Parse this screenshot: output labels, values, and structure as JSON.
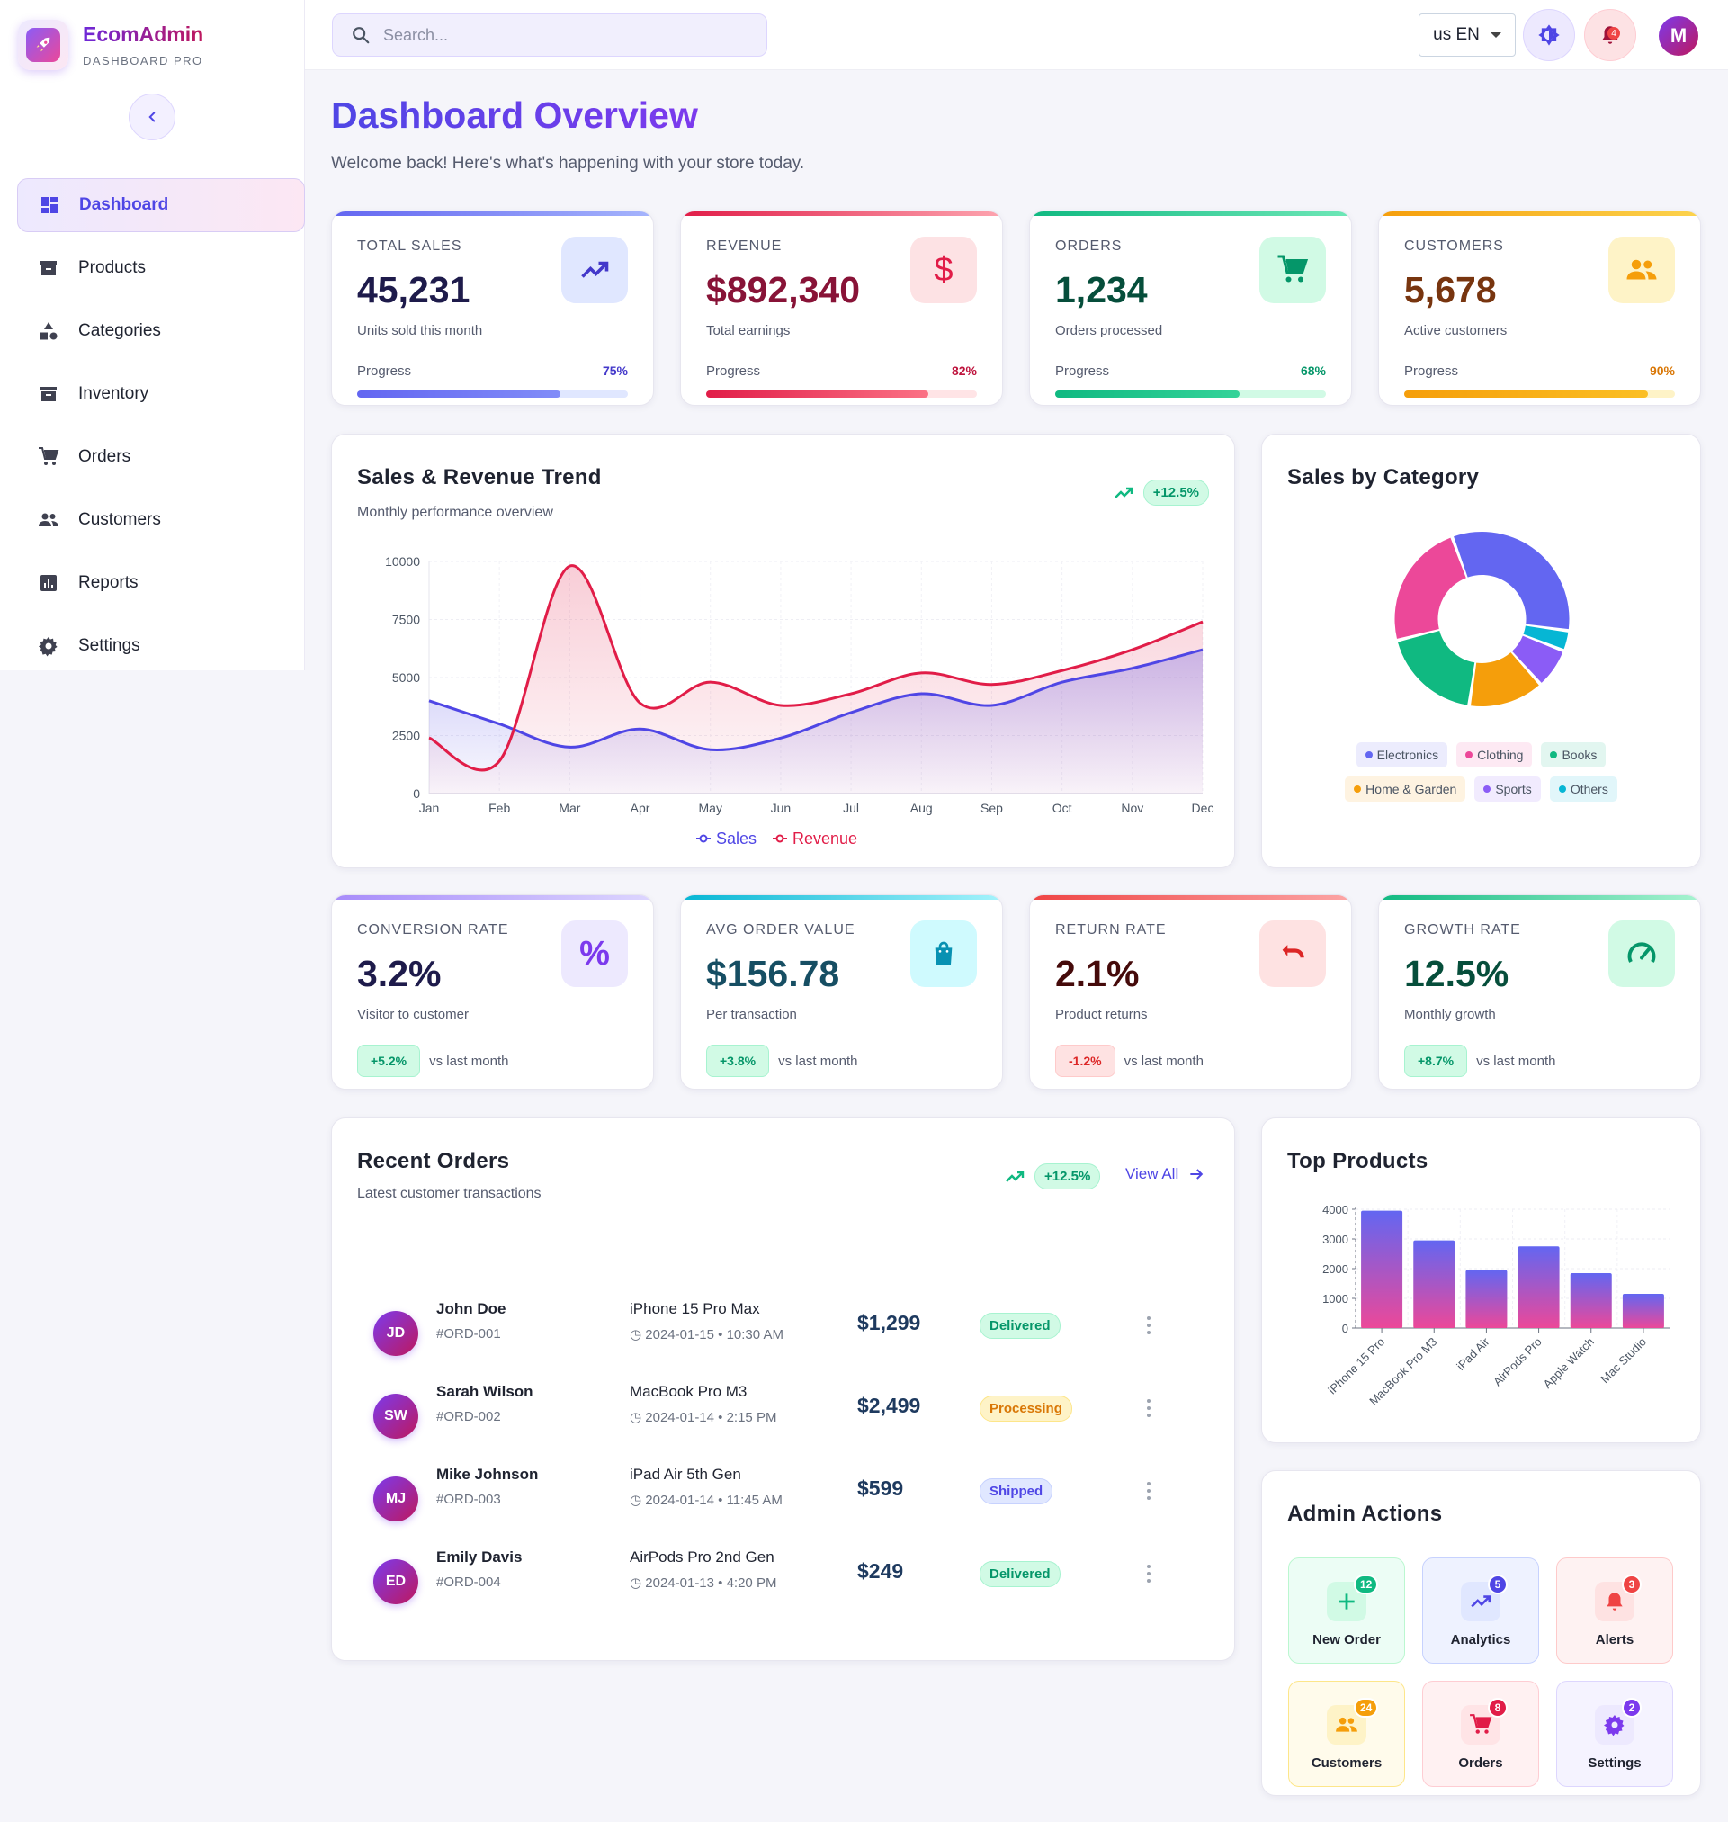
{
  "brand": {
    "name": "EcomAdmin",
    "subtitle": "DASHBOARD PRO"
  },
  "sidebar": {
    "items": [
      {
        "label": "Dashboard",
        "icon": "dashboard-icon",
        "active": true
      },
      {
        "label": "Products",
        "icon": "archive-icon"
      },
      {
        "label": "Categories",
        "icon": "category-icon"
      },
      {
        "label": "Inventory",
        "icon": "inventory-icon"
      },
      {
        "label": "Orders",
        "icon": "cart-icon"
      },
      {
        "label": "Customers",
        "icon": "people-icon"
      },
      {
        "label": "Reports",
        "icon": "report-icon"
      },
      {
        "label": "Settings",
        "icon": "gear-icon"
      }
    ]
  },
  "topbar": {
    "search_placeholder": "Search...",
    "language": "us EN",
    "notifications": "4",
    "avatar_initial": "M"
  },
  "header": {
    "title": "Dashboard Overview",
    "subtitle": "Welcome back! Here's what's happening with your store today."
  },
  "stats": [
    {
      "label": "TOTAL SALES",
      "value": "45,231",
      "desc": "Units sold this month",
      "progress_label": "Progress",
      "progress": "75%",
      "color": "#6366f1"
    },
    {
      "label": "REVENUE",
      "value": "$892,340",
      "desc": "Total earnings",
      "progress_label": "Progress",
      "progress": "82%",
      "color": "#e11d48"
    },
    {
      "label": "ORDERS",
      "value": "1,234",
      "desc": "Orders processed",
      "progress_label": "Progress",
      "progress": "68%",
      "color": "#10b981"
    },
    {
      "label": "CUSTOMERS",
      "value": "5,678",
      "desc": "Active customers",
      "progress_label": "Progress",
      "progress": "90%",
      "color": "#f59e0b"
    }
  ],
  "kpis": [
    {
      "label": "CONVERSION RATE",
      "value": "3.2%",
      "desc": "Visitor to customer",
      "delta": "+5.2%",
      "vs": "vs last month"
    },
    {
      "label": "AVG ORDER VALUE",
      "value": "$156.78",
      "desc": "Per transaction",
      "delta": "+3.8%",
      "vs": "vs last month"
    },
    {
      "label": "RETURN RATE",
      "value": "2.1%",
      "desc": "Product returns",
      "delta": "-1.2%",
      "vs": "vs last month"
    },
    {
      "label": "GROWTH RATE",
      "value": "12.5%",
      "desc": "Monthly growth",
      "delta": "+8.7%",
      "vs": "vs last month"
    }
  ],
  "trend": {
    "title": "Sales & Revenue Trend",
    "subtitle": "Monthly performance overview",
    "badge": "+12.5%"
  },
  "category": {
    "title": "Sales by Category"
  },
  "orders_section": {
    "title": "Recent Orders",
    "subtitle": "Latest customer transactions",
    "badge": "+12.5%",
    "view_all": "View All",
    "rows": [
      {
        "initials": "JD",
        "name": "John Doe",
        "id": "#ORD-001",
        "product": "iPhone 15 Pro Max",
        "date": "2024-01-15 • 10:30 AM",
        "amount": "$1,299",
        "status": "Delivered"
      },
      {
        "initials": "SW",
        "name": "Sarah Wilson",
        "id": "#ORD-002",
        "product": "MacBook Pro M3",
        "date": "2024-01-14 • 2:15 PM",
        "amount": "$2,499",
        "status": "Processing"
      },
      {
        "initials": "MJ",
        "name": "Mike Johnson",
        "id": "#ORD-003",
        "product": "iPad Air 5th Gen",
        "date": "2024-01-14 • 11:45 AM",
        "amount": "$599",
        "status": "Shipped"
      },
      {
        "initials": "ED",
        "name": "Emily Davis",
        "id": "#ORD-004",
        "product": "AirPods Pro 2nd Gen",
        "date": "2024-01-13 • 4:20 PM",
        "amount": "$249",
        "status": "Delivered"
      }
    ]
  },
  "top_products": {
    "title": "Top Products"
  },
  "admin_actions": {
    "title": "Admin Actions",
    "items": [
      {
        "label": "New Order",
        "badge": "12",
        "icon": "plus-icon"
      },
      {
        "label": "Analytics",
        "badge": "5",
        "icon": "trending-icon"
      },
      {
        "label": "Alerts",
        "badge": "3",
        "icon": "bell-icon"
      },
      {
        "label": "Customers",
        "badge": "24",
        "icon": "people-icon"
      },
      {
        "label": "Orders",
        "badge": "8",
        "icon": "cart-icon"
      },
      {
        "label": "Settings",
        "badge": "2",
        "icon": "gear-icon"
      }
    ]
  },
  "chart_data": [
    {
      "type": "area",
      "categories": [
        "Jan",
        "Feb",
        "Mar",
        "Apr",
        "May",
        "Jun",
        "Jul",
        "Aug",
        "Sep",
        "Oct",
        "Nov",
        "Dec"
      ],
      "ylim": [
        0,
        10000
      ],
      "yticks": [
        0,
        2500,
        5000,
        7500,
        10000
      ],
      "series": [
        {
          "name": "Sales",
          "values": [
            4000,
            3000,
            2000,
            2780,
            1890,
            2390,
            3490,
            4300,
            3800,
            4800,
            5400,
            6200
          ],
          "color": "#4f46e5"
        },
        {
          "name": "Revenue",
          "values": [
            2400,
            1400,
            9800,
            3900,
            4800,
            3800,
            4300,
            5200,
            4700,
            5300,
            6200,
            7400
          ],
          "color": "#e11d48"
        }
      ],
      "legend": "bottom"
    },
    {
      "type": "pie",
      "labels": [
        "Electronics",
        "Clothing",
        "Books",
        "Home & Garden",
        "Sports",
        "Others"
      ],
      "values": [
        35,
        25,
        20,
        15,
        8,
        4
      ],
      "colors": [
        "#6366f1",
        "#ec4899",
        "#10b981",
        "#f59e0b",
        "#8b5cf6",
        "#06b6d4"
      ],
      "legend": "bottom"
    },
    {
      "type": "bar",
      "categories": [
        "iPhone 15 Pro",
        "MacBook Pro M3",
        "iPad Air",
        "AirPods Pro",
        "Apple Watch",
        "Mac Studio"
      ],
      "values": [
        3950,
        2950,
        1950,
        2750,
        1850,
        1150
      ],
      "ylim": [
        0,
        4000
      ],
      "yticks": [
        0,
        1000,
        2000,
        3000,
        4000
      ]
    }
  ]
}
